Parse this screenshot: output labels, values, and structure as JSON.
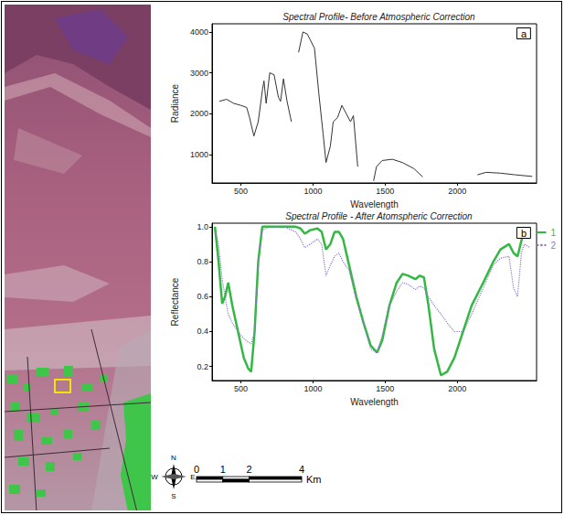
{
  "map": {
    "compass": [
      "N",
      "E",
      "S",
      "W"
    ],
    "scale_bar": {
      "ticks": [
        0,
        1,
        2,
        4
      ],
      "unit": "Km"
    }
  },
  "chart_data": [
    {
      "type": "line",
      "title": "Spectral Profile- Before Atmospheric Correction",
      "panel": "a",
      "x_label": "Wavelength",
      "y_label": "Radiance",
      "color": "#333333",
      "grid": false,
      "x": [
        350,
        400,
        450,
        500,
        540,
        560,
        590,
        620,
        650,
        660,
        675,
        700,
        730,
        760,
        775,
        795,
        820,
        850,
        875,
        900,
        930,
        960,
        1010,
        1040,
        1070,
        1090,
        1120,
        1140,
        1170,
        1200,
        1230,
        1260,
        1280,
        1310,
        1365,
        1420,
        1440,
        1480,
        1550,
        1620,
        1700,
        1760,
        1950,
        2140,
        2200,
        2300,
        2400,
        2520
      ],
      "values": [
        2300,
        2350,
        2250,
        2200,
        2150,
        1900,
        1450,
        1800,
        2600,
        2800,
        2250,
        3000,
        2950,
        2400,
        2300,
        2850,
        2300,
        1800,
        null,
        3500,
        4000,
        3950,
        3600,
        2500,
        1500,
        800,
        1200,
        1800,
        1900,
        2200,
        2000,
        1800,
        1950,
        700,
        null,
        350,
        700,
        850,
        880,
        800,
        650,
        450,
        null,
        500,
        560,
        540,
        500,
        460
      ],
      "xlim": [
        300,
        2550
      ],
      "xticks": [
        500,
        1000,
        1500,
        2000
      ],
      "ylim": [
        300,
        4200
      ],
      "yticks": [
        1000,
        2000,
        3000,
        4000
      ]
    },
    {
      "type": "line",
      "title": "Spectral Profile - After Atomspheric Correction",
      "panel": "b",
      "x_label": "Wavelength",
      "y_label": "Reflectance",
      "grid": false,
      "legend": "right",
      "x": [
        320,
        345,
        370,
        390,
        412,
        440,
        480,
        520,
        550,
        571,
        595,
        620,
        648,
        700,
        800,
        880,
        913,
        943,
        980,
        1031,
        1060,
        1090,
        1120,
        1149,
        1180,
        1208,
        1250,
        1300,
        1350,
        1400,
        1444,
        1480,
        1530,
        1580,
        1621,
        1660,
        1710,
        1740,
        1769,
        1800,
        1840,
        1887,
        1930,
        1980,
        2040,
        2100,
        2180,
        2250,
        2300,
        2359,
        2390,
        2418,
        2445,
        2465,
        2506
      ],
      "series": [
        {
          "name": "1",
          "color": "#33b843",
          "line_style": "solid",
          "values": [
            1.0,
            0.8,
            0.56,
            0.6,
            0.68,
            0.55,
            0.4,
            0.25,
            0.19,
            0.17,
            0.4,
            0.8,
            1.0,
            1.0,
            1.0,
            1.0,
            0.99,
            0.96,
            0.98,
            0.99,
            0.97,
            0.87,
            0.9,
            0.97,
            0.97,
            0.93,
            0.78,
            0.6,
            0.45,
            0.32,
            0.28,
            0.35,
            0.55,
            0.68,
            0.73,
            0.72,
            0.7,
            0.72,
            0.71,
            0.55,
            0.3,
            0.15,
            0.17,
            0.25,
            0.4,
            0.55,
            0.68,
            0.8,
            0.87,
            0.9,
            0.85,
            0.83,
            0.92,
            0.98,
            0.97
          ]
        },
        {
          "name": "2",
          "color": "#8a7cc4",
          "line_style": "dotted",
          "values": [
            0.98,
            0.9,
            0.7,
            0.6,
            0.5,
            0.45,
            0.4,
            0.36,
            0.34,
            0.33,
            0.4,
            0.8,
            0.98,
            1.0,
            1.0,
            0.97,
            0.93,
            0.88,
            0.9,
            0.93,
            0.9,
            0.72,
            0.78,
            0.83,
            0.85,
            0.8,
            0.75,
            0.58,
            0.45,
            0.3,
            0.28,
            0.38,
            0.55,
            0.63,
            0.68,
            0.67,
            0.64,
            0.66,
            0.65,
            0.6,
            0.55,
            0.5,
            0.45,
            0.4,
            0.4,
            0.5,
            0.65,
            0.78,
            0.82,
            0.83,
            0.65,
            0.6,
            0.85,
            0.9,
            0.88
          ]
        }
      ],
      "xlim": [
        300,
        2550
      ],
      "xticks": [
        500,
        1000,
        1500,
        2000
      ],
      "ylim": [
        0.12,
        1.02
      ],
      "yticks": [
        0.2,
        0.4,
        0.6,
        0.8,
        {
          "value": 1,
          "label": "1.0"
        }
      ]
    }
  ]
}
